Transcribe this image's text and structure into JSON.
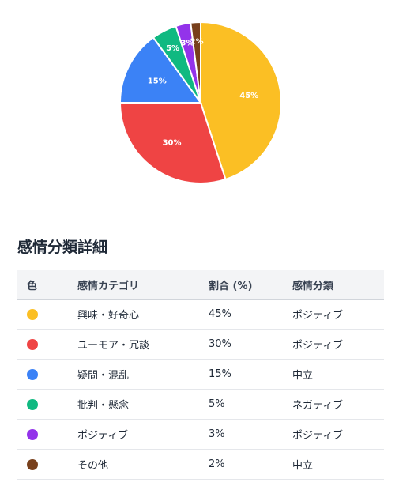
{
  "chart_data": {
    "type": "pie",
    "categories": [
      "興味・好奇心",
      "ユーモア・冗談",
      "疑問・混乱",
      "批判・懸念",
      "ポジティブ",
      "その他"
    ],
    "values": [
      45,
      30,
      15,
      5,
      3,
      2
    ],
    "colors": [
      "#fbbf24",
      "#ef4444",
      "#3b82f6",
      "#10b981",
      "#9333ea",
      "#78401c"
    ],
    "slice_labels": [
      "45%",
      "30%",
      "15%",
      "5%",
      "3%",
      "2%"
    ]
  },
  "section_title": "感情分類詳細",
  "table": {
    "headers": [
      "色",
      "感情カテゴリ",
      "割合 (%)",
      "感情分類"
    ],
    "rows": [
      {
        "color": "#fbbf24",
        "category": "興味・好奇心",
        "percent": "45%",
        "sentiment": "ポジティブ"
      },
      {
        "color": "#ef4444",
        "category": "ユーモア・冗談",
        "percent": "30%",
        "sentiment": "ポジティブ"
      },
      {
        "color": "#3b82f6",
        "category": "疑問・混乱",
        "percent": "15%",
        "sentiment": "中立"
      },
      {
        "color": "#10b981",
        "category": "批判・懸念",
        "percent": "5%",
        "sentiment": "ネガティブ"
      },
      {
        "color": "#9333ea",
        "category": "ポジティブ",
        "percent": "3%",
        "sentiment": "ポジティブ"
      },
      {
        "color": "#78401c",
        "category": "その他",
        "percent": "2%",
        "sentiment": "中立"
      }
    ]
  }
}
